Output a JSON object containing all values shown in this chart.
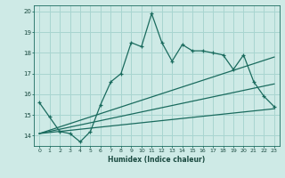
{
  "xlabel": "Humidex (Indice chaleur)",
  "ylabel": "",
  "bg_color": "#ceeae6",
  "grid_color": "#a8d5d0",
  "line_color": "#1a6b5e",
  "xlim": [
    -0.5,
    23.5
  ],
  "ylim": [
    13.5,
    20.3
  ],
  "xticks": [
    0,
    1,
    2,
    3,
    4,
    5,
    6,
    7,
    8,
    9,
    10,
    11,
    12,
    13,
    14,
    15,
    16,
    17,
    18,
    19,
    20,
    21,
    22,
    23
  ],
  "yticks": [
    14,
    15,
    16,
    17,
    18,
    19,
    20
  ],
  "series1_x": [
    0,
    1,
    2,
    3,
    4,
    5,
    6,
    7,
    8,
    9,
    10,
    11,
    12,
    13,
    14,
    15,
    16,
    17,
    18,
    19,
    20,
    21,
    22,
    23
  ],
  "series1_y": [
    15.6,
    14.9,
    14.2,
    14.1,
    13.7,
    14.2,
    15.5,
    16.6,
    17.0,
    18.5,
    18.3,
    19.9,
    18.5,
    17.6,
    18.4,
    18.1,
    18.1,
    18.0,
    17.9,
    17.2,
    17.9,
    16.6,
    15.9,
    15.4
  ],
  "series2_x": [
    0,
    23
  ],
  "series2_y": [
    14.1,
    15.3
  ],
  "series3_x": [
    0,
    23
  ],
  "series3_y": [
    14.1,
    16.5
  ],
  "series4_x": [
    0,
    23
  ],
  "series4_y": [
    14.1,
    17.8
  ]
}
